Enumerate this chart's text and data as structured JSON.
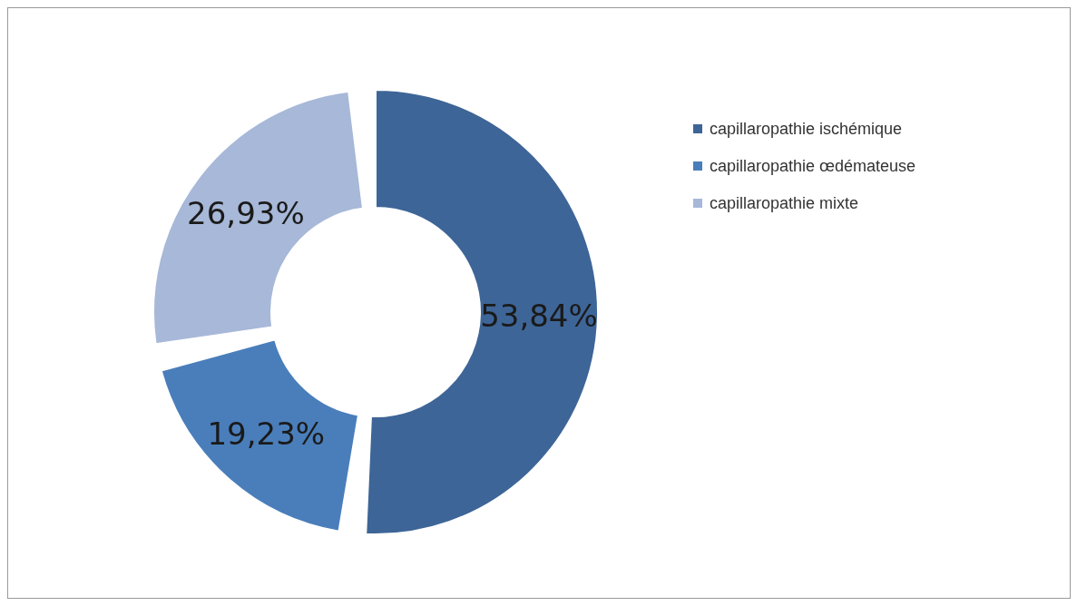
{
  "chart_data": {
    "type": "donut",
    "categories": [
      "capillaropathie ischémique",
      "capillaropathie œdémateuse",
      "capillaropathie mixte"
    ],
    "values": [
      53.84,
      19.23,
      26.93
    ],
    "colors": [
      "#3e6597",
      "#4a7ebb",
      "#a7b8d8"
    ],
    "value_labels": [
      "53,84%",
      "19,23%",
      "26,93%"
    ],
    "legend": "right"
  }
}
